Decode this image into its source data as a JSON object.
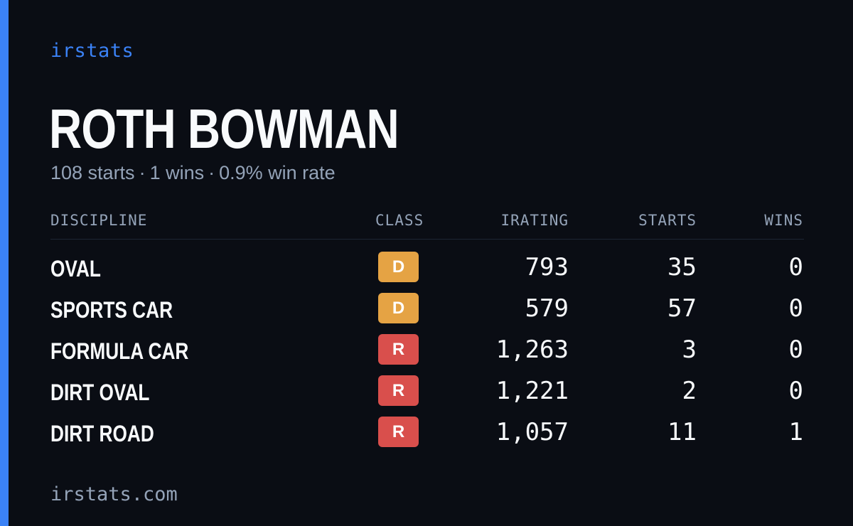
{
  "brand": "irstats",
  "driver": {
    "name": "ROTH BOWMAN",
    "summary": {
      "starts": "108 starts",
      "wins": "1 wins",
      "win_rate": "0.9% win rate",
      "separator": "·"
    }
  },
  "table": {
    "headers": {
      "discipline": "DISCIPLINE",
      "class": "CLASS",
      "irating": "IRATING",
      "starts": "STARTS",
      "wins": "WINS"
    },
    "rows": [
      {
        "discipline": "OVAL",
        "class": "D",
        "irating": "793",
        "starts": "35",
        "wins": "0"
      },
      {
        "discipline": "SPORTS CAR",
        "class": "D",
        "irating": "579",
        "starts": "57",
        "wins": "0"
      },
      {
        "discipline": "FORMULA CAR",
        "class": "R",
        "irating": "1,263",
        "starts": "3",
        "wins": "0"
      },
      {
        "discipline": "DIRT OVAL",
        "class": "R",
        "irating": "1,221",
        "starts": "2",
        "wins": "0"
      },
      {
        "discipline": "DIRT ROAD",
        "class": "R",
        "irating": "1,057",
        "starts": "11",
        "wins": "1"
      }
    ]
  },
  "class_colors": {
    "D": "#e5a344",
    "R": "#d94f4c"
  },
  "accent_color": "#3b82f6",
  "footer": "irstats.com"
}
